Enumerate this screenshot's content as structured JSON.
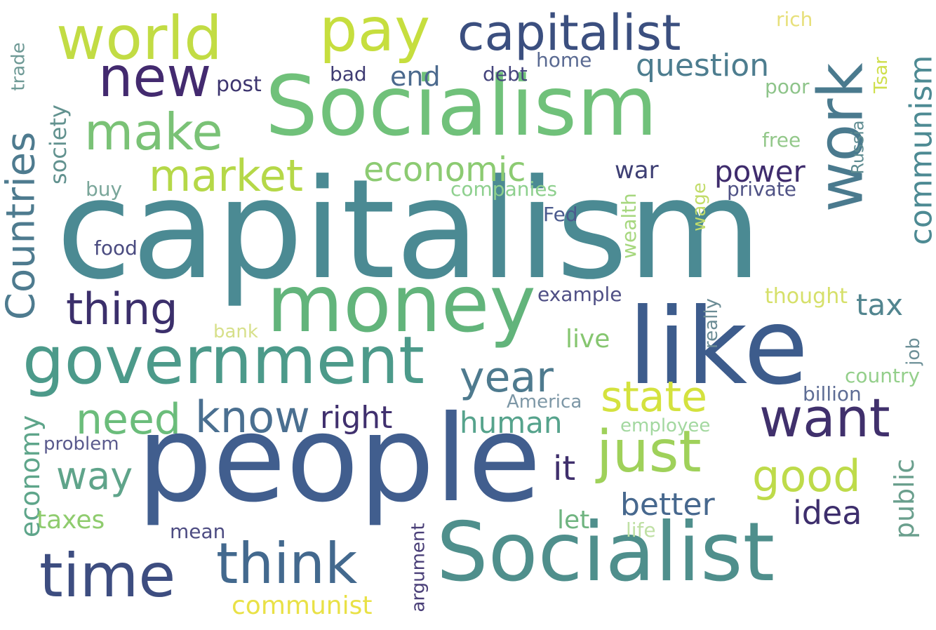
{
  "words": [
    {
      "text": "capitalism",
      "color": "#4b8a93"
    },
    {
      "text": "people",
      "color": "#415e8e"
    },
    {
      "text": "Socialism",
      "color": "#70c17a"
    },
    {
      "text": "Socialist",
      "color": "#4f8f8c"
    },
    {
      "text": "like",
      "color": "#3d5c8c"
    },
    {
      "text": "money",
      "color": "#62b47b"
    },
    {
      "text": "government",
      "color": "#4c9a8a"
    },
    {
      "text": "world",
      "color": "#c2dc44"
    },
    {
      "text": "pay",
      "color": "#c6de3e"
    },
    {
      "text": "capitalist",
      "color": "#3b4f7f"
    },
    {
      "text": "work",
      "color": "#4a7a8e"
    },
    {
      "text": "new",
      "color": "#432a6f"
    },
    {
      "text": "make",
      "color": "#7ac276"
    },
    {
      "text": "market",
      "color": "#b5d848"
    },
    {
      "text": "Countries",
      "color": "#4e7b8f"
    },
    {
      "text": "thing",
      "color": "#3b2f6b"
    },
    {
      "text": "want",
      "color": "#40306c"
    },
    {
      "text": "just",
      "color": "#9fd15a"
    },
    {
      "text": "time",
      "color": "#3d4d80"
    },
    {
      "text": "think",
      "color": "#43698e"
    },
    {
      "text": "know",
      "color": "#4a6f90"
    },
    {
      "text": "need",
      "color": "#6bbd7b"
    },
    {
      "text": "year",
      "color": "#4e7a8e"
    },
    {
      "text": "state",
      "color": "#d4e23e"
    },
    {
      "text": "good",
      "color": "#bedb4a"
    },
    {
      "text": "economic",
      "color": "#8ccb72"
    },
    {
      "text": "question",
      "color": "#4d7d8f"
    },
    {
      "text": "communism",
      "color": "#4d8a93"
    },
    {
      "text": "power",
      "color": "#3f2c6d"
    },
    {
      "text": "tax",
      "color": "#52858f"
    },
    {
      "text": "way",
      "color": "#5fa48a"
    },
    {
      "text": "right",
      "color": "#40306e"
    },
    {
      "text": "human",
      "color": "#56a38c"
    },
    {
      "text": "it",
      "color": "#3f2f6c"
    },
    {
      "text": "better",
      "color": "#47688e"
    },
    {
      "text": "idea",
      "color": "#3d2e6c"
    },
    {
      "text": "public",
      "color": "#6a9f8d"
    },
    {
      "text": "economy",
      "color": "#5ea58a"
    },
    {
      "text": "taxes",
      "color": "#8fcc6e"
    },
    {
      "text": "communist",
      "color": "#e9e146"
    },
    {
      "text": "society",
      "color": "#62928f"
    },
    {
      "text": "end",
      "color": "#4c6a8e"
    },
    {
      "text": "war",
      "color": "#3e3f74"
    },
    {
      "text": "live",
      "color": "#86c670"
    },
    {
      "text": "let",
      "color": "#6fb480"
    },
    {
      "text": "Russia",
      "color": "#5f8c91"
    },
    {
      "text": "Tsar",
      "color": "#cfdf4c"
    },
    {
      "text": "rich",
      "color": "#e7e07a"
    },
    {
      "text": "poor",
      "color": "#8ec48a"
    },
    {
      "text": "free",
      "color": "#93c88a"
    },
    {
      "text": "private",
      "color": "#4f5285"
    },
    {
      "text": "companies",
      "color": "#8ed08e"
    },
    {
      "text": "wage",
      "color": "#c2dc6a"
    },
    {
      "text": "wealth",
      "color": "#a6d77e"
    },
    {
      "text": "Fed",
      "color": "#4b5a8d"
    },
    {
      "text": "home",
      "color": "#5a6a92"
    },
    {
      "text": "debt",
      "color": "#45457c"
    },
    {
      "text": "bad",
      "color": "#3f3c73"
    },
    {
      "text": "post",
      "color": "#3d356f"
    },
    {
      "text": "trade",
      "color": "#6f9a96"
    },
    {
      "text": "buy",
      "color": "#7aa69a"
    },
    {
      "text": "food",
      "color": "#4a4b80"
    },
    {
      "text": "example",
      "color": "#4f4f85"
    },
    {
      "text": "bank",
      "color": "#d7e08a"
    },
    {
      "text": "thought",
      "color": "#d6e06a"
    },
    {
      "text": "really",
      "color": "#6b8c95"
    },
    {
      "text": "job",
      "color": "#6c8f97"
    },
    {
      "text": "country",
      "color": "#94cf8b"
    },
    {
      "text": "billion",
      "color": "#5e6d95"
    },
    {
      "text": "America",
      "color": "#7d97a6"
    },
    {
      "text": "employee",
      "color": "#a3d8a0"
    },
    {
      "text": "problem",
      "color": "#5a5a8d"
    },
    {
      "text": "mean",
      "color": "#4d4c82"
    },
    {
      "text": "life",
      "color": "#bfe0a4"
    },
    {
      "text": "argument",
      "color": "#4a3f78"
    }
  ]
}
